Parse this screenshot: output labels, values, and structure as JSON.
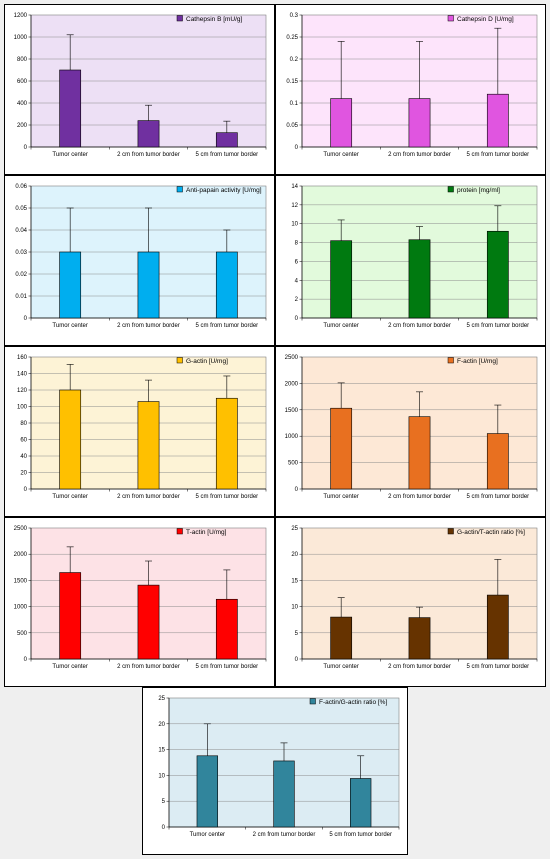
{
  "chart_data": [
    {
      "type": "bar",
      "legend": "Cathepsin B [mU/g]",
      "color": "#7030a0",
      "bg": "#ede0f5",
      "categories": [
        "Tumor center",
        "2 cm from tumor border",
        "5 cm from tumor border"
      ],
      "values": [
        700,
        240,
        130
      ],
      "errors": [
        320,
        140,
        105
      ],
      "yticks": [
        "0",
        "200",
        "400",
        "600",
        "800",
        "1000",
        "1200"
      ],
      "ylim": [
        0,
        1200
      ],
      "grid": true,
      "legend_position": "top-right"
    },
    {
      "type": "bar",
      "legend": "Cathepsin D [U/mg]",
      "color": "#e055e0",
      "bg": "#fde4fb",
      "categories": [
        "Tumor center",
        "2 cm from tumor border",
        "5 cm from tumor border"
      ],
      "values": [
        0.11,
        0.11,
        0.12
      ],
      "errors": [
        0.13,
        0.13,
        0.15
      ],
      "yticks": [
        "0",
        "0.05",
        "0.1",
        "0.15",
        "0.2",
        "0.25",
        "0.3"
      ],
      "ylim": [
        0,
        0.3
      ],
      "grid": true,
      "legend_position": "top-right"
    },
    {
      "type": "bar",
      "legend": "Anti-papain activity [U/mg]",
      "color": "#00aeef",
      "bg": "#ddf3fc",
      "categories": [
        "Tumor center",
        "2 cm from tumor border",
        "5 cm from tumor border"
      ],
      "values": [
        0.03,
        0.03,
        0.03
      ],
      "errors": [
        0.02,
        0.02,
        0.01
      ],
      "yticks": [
        "0",
        "0.01",
        "0.02",
        "0.03",
        "0.04",
        "0.05",
        "0.06"
      ],
      "ylim": [
        0,
        0.06
      ],
      "grid": true,
      "legend_position": "top-right"
    },
    {
      "type": "bar",
      "legend": "protein [mg/ml]",
      "color": "#007a10",
      "bg": "#e2fadc",
      "categories": [
        "Tumor center",
        "2 cm from tumor border",
        "5 cm from tumor border"
      ],
      "values": [
        8.2,
        8.3,
        9.2
      ],
      "errors": [
        2.2,
        1.4,
        2.7
      ],
      "yticks": [
        "0",
        "2",
        "4",
        "6",
        "8",
        "10",
        "12",
        "14"
      ],
      "ylim": [
        0,
        14
      ],
      "grid": true,
      "legend_position": "top-right"
    },
    {
      "type": "bar",
      "legend": "G-actin [U/mg]",
      "color": "#ffc000",
      "bg": "#fdf3d6",
      "categories": [
        "Tumor center",
        "2 cm from tumor border",
        "5 cm from tumor border"
      ],
      "values": [
        120,
        106,
        110
      ],
      "errors": [
        31,
        26,
        27
      ],
      "yticks": [
        "0",
        "20",
        "40",
        "60",
        "80",
        "100",
        "120",
        "140",
        "160"
      ],
      "ylim": [
        0,
        160
      ],
      "grid": true,
      "legend_position": "top-right"
    },
    {
      "type": "bar",
      "legend": "F-actin [U/mg]",
      "color": "#e87020",
      "bg": "#fde8d6",
      "categories": [
        "Tumor center",
        "2 cm from tumor border",
        "5 cm from tumor border"
      ],
      "values": [
        1530,
        1370,
        1050
      ],
      "errors": [
        480,
        470,
        540
      ],
      "yticks": [
        "0",
        "500",
        "1000",
        "1500",
        "2000",
        "2500"
      ],
      "ylim": [
        0,
        2500
      ],
      "grid": true,
      "legend_position": "top-right"
    },
    {
      "type": "bar",
      "legend": "T-actin [U/mg]",
      "color": "#ff0000",
      "bg": "#fde2e6",
      "categories": [
        "Tumor center",
        "2 cm from tumor border",
        "5 cm from tumor border"
      ],
      "values": [
        1650,
        1410,
        1140
      ],
      "errors": [
        490,
        460,
        560
      ],
      "yticks": [
        "0",
        "500",
        "1000",
        "1500",
        "2000",
        "2500"
      ],
      "ylim": [
        0,
        2500
      ],
      "grid": true,
      "legend_position": "top-right"
    },
    {
      "type": "bar",
      "legend": "G-actin/T-actin ratio [%]",
      "color": "#663300",
      "bg": "#fbe9d8",
      "categories": [
        "Tumor center",
        "2 cm from tumor border",
        "5 cm from tumor border"
      ],
      "values": [
        8.0,
        7.9,
        12.2
      ],
      "errors": [
        3.7,
        2.0,
        6.8
      ],
      "yticks": [
        "0",
        "5",
        "10",
        "15",
        "20",
        "25"
      ],
      "ylim": [
        0,
        25
      ],
      "grid": true,
      "legend_position": "top-right"
    },
    {
      "type": "bar",
      "legend": "F-actin/G-actin ratio [%]",
      "color": "#31859c",
      "bg": "#dcecf3",
      "categories": [
        "Tumor center",
        "2 cm from tumor border",
        "5 cm from tumor border"
      ],
      "values": [
        13.8,
        12.8,
        9.4
      ],
      "errors": [
        6.2,
        3.5,
        4.4
      ],
      "yticks": [
        "0",
        "5",
        "10",
        "15",
        "20",
        "25"
      ],
      "ylim": [
        0,
        25
      ],
      "grid": true,
      "legend_position": "top-right"
    }
  ]
}
